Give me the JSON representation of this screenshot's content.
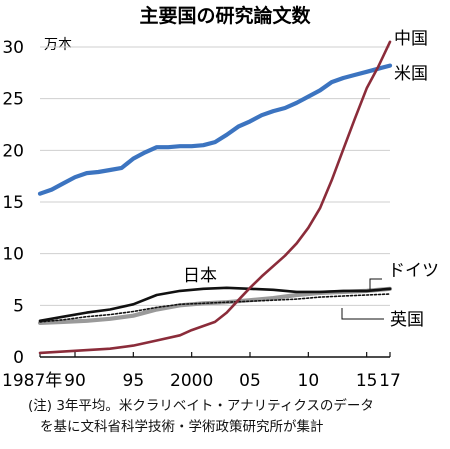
{
  "chart_data": {
    "type": "line",
    "title": "主要国の研究論文数",
    "unit": "万本",
    "ylim": [
      0,
      30
    ],
    "xlim": [
      1987,
      2017
    ],
    "y_ticks": [
      "0",
      "5",
      "10",
      "15",
      "20",
      "25",
      "30"
    ],
    "x_ticks": [
      {
        "x": 1987,
        "label": "1987年"
      },
      {
        "x": 1990,
        "label": "90"
      },
      {
        "x": 1995,
        "label": "95"
      },
      {
        "x": 2000,
        "label": "2000"
      },
      {
        "x": 2005,
        "label": "05"
      },
      {
        "x": 2010,
        "label": "10"
      },
      {
        "x": 2015,
        "label": "15"
      },
      {
        "x": 2017,
        "label": "17"
      }
    ],
    "grid": "horizontal",
    "series": [
      {
        "name": "中国",
        "color": "#8b2c3a",
        "x": [
          1987,
          1990,
          1993,
          1995,
          1997,
          1999,
          2000,
          2002,
          2003,
          2004,
          2005,
          2006,
          2008,
          2009,
          2010,
          2011,
          2012,
          2013,
          2014,
          2015,
          2016,
          2017
        ],
        "y": [
          0.4,
          0.6,
          0.8,
          1.1,
          1.6,
          2.1,
          2.6,
          3.4,
          4.3,
          5.5,
          6.7,
          7.8,
          9.8,
          11.0,
          12.5,
          14.4,
          17.1,
          20.1,
          23.1,
          26.0,
          28.1,
          30.5
        ]
      },
      {
        "name": "米国",
        "color": "#3c74c0",
        "x": [
          1987,
          1988,
          1989,
          1990,
          1991,
          1992,
          1993,
          1994,
          1995,
          1996,
          1997,
          1998,
          1999,
          2000,
          2001,
          2002,
          2003,
          2004,
          2005,
          2006,
          2007,
          2008,
          2009,
          2010,
          2011,
          2012,
          2013,
          2014,
          2015,
          2016,
          2017
        ],
        "y": [
          15.8,
          16.2,
          16.8,
          17.4,
          17.8,
          17.9,
          18.1,
          18.3,
          19.2,
          19.8,
          20.3,
          20.3,
          20.4,
          20.4,
          20.5,
          20.8,
          21.5,
          22.3,
          22.8,
          23.4,
          23.8,
          24.1,
          24.6,
          25.2,
          25.8,
          26.6,
          27.0,
          27.3,
          27.6,
          27.9,
          28.2
        ]
      },
      {
        "name": "日本",
        "color": "#111111",
        "x": [
          1987,
          1989,
          1991,
          1993,
          1995,
          1997,
          1999,
          2001,
          2003,
          2005,
          2007,
          2009,
          2011,
          2013,
          2015,
          2017
        ],
        "y": [
          3.5,
          3.9,
          4.3,
          4.6,
          5.1,
          6.0,
          6.4,
          6.6,
          6.7,
          6.6,
          6.5,
          6.3,
          6.3,
          6.4,
          6.4,
          6.6
        ]
      },
      {
        "name": "ドイツ",
        "color": "#9a9a9a",
        "x": [
          1987,
          1989,
          1991,
          1993,
          1995,
          1997,
          1999,
          2001,
          2003,
          2005,
          2007,
          2009,
          2011,
          2013,
          2015,
          2017
        ],
        "y": [
          3.3,
          3.4,
          3.5,
          3.7,
          4.0,
          4.6,
          5.0,
          5.2,
          5.3,
          5.5,
          5.7,
          6.0,
          6.2,
          6.3,
          6.4,
          6.6
        ]
      },
      {
        "name": "英国",
        "color": "#111111",
        "dashed": true,
        "x": [
          1987,
          1989,
          1991,
          1993,
          1995,
          1997,
          1999,
          2001,
          2003,
          2005,
          2007,
          2009,
          2011,
          2013,
          2015,
          2017
        ],
        "y": [
          3.4,
          3.6,
          3.9,
          4.1,
          4.4,
          4.8,
          5.1,
          5.2,
          5.3,
          5.4,
          5.5,
          5.6,
          5.8,
          5.9,
          6.0,
          6.1
        ]
      }
    ],
    "note_lines": [
      "(注) 3年平均。米クラリベイト・アナリティクスのデータ",
      "を基に文科省科学技術・学術政策研究所が集計"
    ]
  }
}
